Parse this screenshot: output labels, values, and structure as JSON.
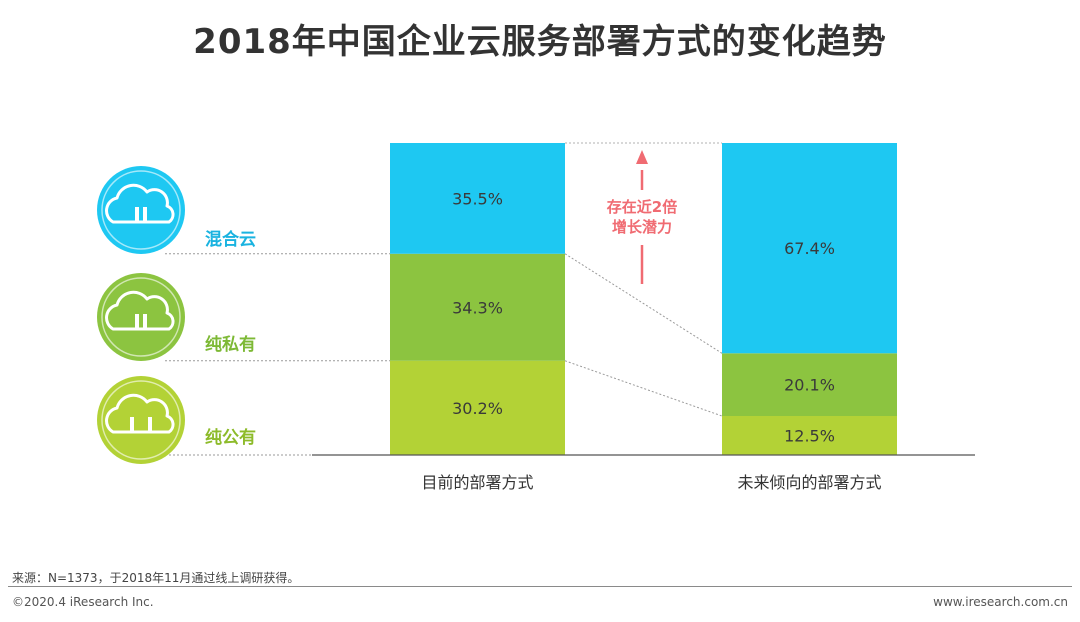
{
  "title": "2018年中国企业云服务部署方式的变化趋势",
  "chart_data": {
    "type": "bar",
    "stacked": true,
    "title": "2018年中国企业云服务部署方式的变化趋势",
    "categories": [
      "目前的部署方式",
      "未来倾向的部署方式"
    ],
    "ylim": [
      0,
      100
    ],
    "series": [
      {
        "name": "纯公有",
        "values": [
          30.2,
          12.5
        ],
        "labels": [
          "30.2%",
          "12.5%"
        ],
        "color": "#b3d236"
      },
      {
        "name": "纯私有",
        "values": [
          34.3,
          20.1
        ],
        "labels": [
          "34.3%",
          "20.1%"
        ],
        "color": "#8cc440"
      },
      {
        "name": "混合云",
        "values": [
          35.5,
          67.4
        ],
        "labels": [
          "35.5%",
          "67.4%"
        ],
        "color": "#1ec8f2"
      }
    ],
    "annotation": {
      "line1": "存在近2倍",
      "line2": "增长潜力",
      "color": "#f06b72"
    }
  },
  "legend": [
    {
      "label": "混合云",
      "icon": "hybrid-cloud-icon",
      "color": "#1ec8f2",
      "text_color": "#1ab3e0"
    },
    {
      "label": "纯私有",
      "icon": "private-cloud-icon",
      "color": "#8cc440",
      "text_color": "#7db935"
    },
    {
      "label": "纯公有",
      "icon": "public-cloud-icon",
      "color": "#b3d236",
      "text_color": "#8dbb2a"
    }
  ],
  "footer": {
    "source": "来源：N=1373，于2018年11月通过线上调研获得。",
    "copyright": "©2020.4 iResearch Inc.",
    "site": "www.iresearch.com.cn"
  }
}
